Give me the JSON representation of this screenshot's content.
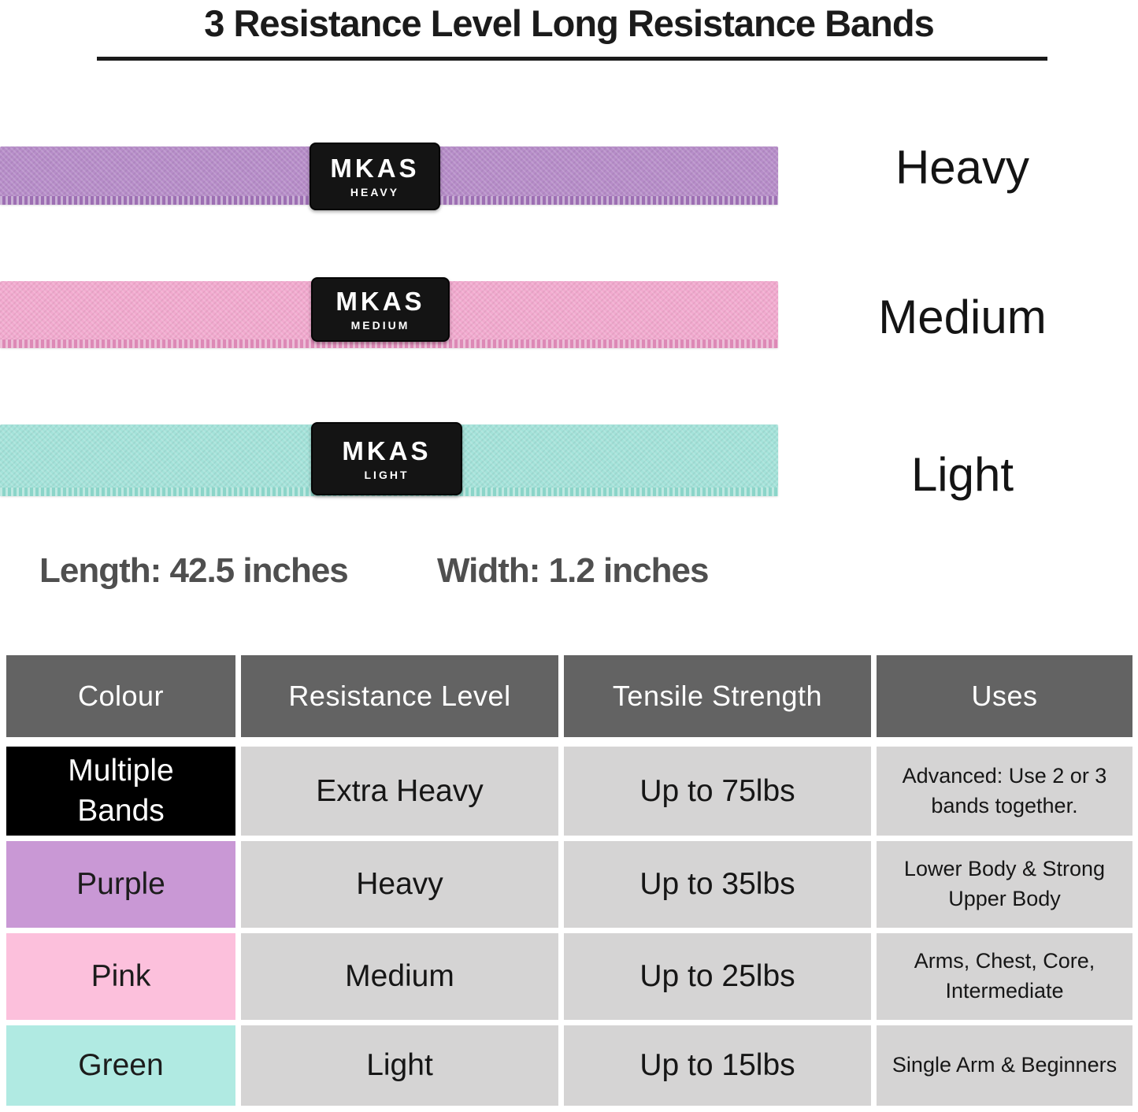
{
  "title": "3 Resistance Level Long Resistance Bands",
  "bands": [
    {
      "label": "Heavy",
      "tag_brand": "MKAS",
      "tag_level": "HEAVY",
      "color": "#b78dc9",
      "seam_color": "#9d6fb3"
    },
    {
      "label": "Medium",
      "tag_brand": "MKAS",
      "tag_level": "MEDIUM",
      "color": "#f2aacf",
      "seam_color": "#dd89b6"
    },
    {
      "label": "Light",
      "tag_brand": "MKAS",
      "tag_level": "LIGHT",
      "color": "#a4e3da",
      "seam_color": "#8bd5c9"
    }
  ],
  "dimensions": {
    "length": "Length: 42.5 inches",
    "width": "Width: 1.2 inches"
  },
  "table": {
    "header_bg": "#636363",
    "cell_bg": "#d5d4d4",
    "headers": [
      "Colour",
      "Resistance Level",
      "Tensile Strength",
      "Uses"
    ],
    "rows": [
      {
        "colour": "Multiple Bands",
        "colour_bg": "#000000",
        "colour_text": "#ffffff",
        "resistance": "Extra Heavy",
        "tensile": "Up to 75lbs",
        "uses": "Advanced: Use 2 or 3 bands together."
      },
      {
        "colour": "Purple",
        "colour_bg": "#c998d5",
        "colour_text": "#1c1c1c",
        "resistance": "Heavy",
        "tensile": "Up to 35lbs",
        "uses": "Lower Body & Strong Upper Body"
      },
      {
        "colour": "Pink",
        "colour_bg": "#fcc0dc",
        "colour_text": "#1c1c1c",
        "resistance": "Medium",
        "tensile": "Up to 25lbs",
        "uses": "Arms, Chest, Core, Intermediate"
      },
      {
        "colour": "Green",
        "colour_bg": "#b0eae2",
        "colour_text": "#1c1c1c",
        "resistance": "Light",
        "tensile": "Up to 15lbs",
        "uses": "Single Arm & Beginners"
      }
    ]
  }
}
